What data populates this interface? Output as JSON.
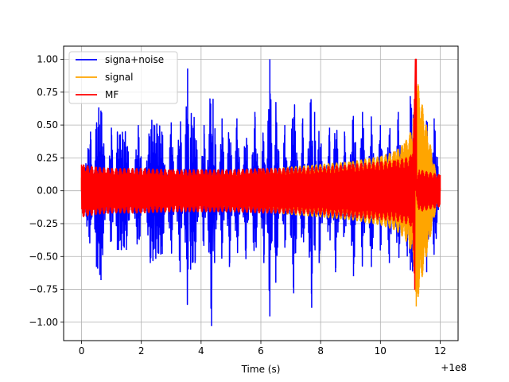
{
  "chart_data": {
    "type": "line",
    "title": "",
    "xlabel": "Time (s)",
    "ylabel": "",
    "x_offset_label": "+1e8",
    "xlim": [
      -0.6,
      12.6
    ],
    "ylim": [
      -1.14,
      1.1
    ],
    "x_ticks": [
      0,
      2,
      4,
      6,
      8,
      10,
      12
    ],
    "x_tick_labels": [
      "0",
      "2",
      "4",
      "6",
      "8",
      "10",
      "12"
    ],
    "y_ticks": [
      -1.0,
      -0.75,
      -0.5,
      -0.25,
      0.0,
      0.25,
      0.5,
      0.75,
      1.0
    ],
    "y_tick_labels": [
      "−1.00",
      "−0.75",
      "−0.50",
      "−0.25",
      "0.00",
      "0.25",
      "0.50",
      "0.75",
      "1.00"
    ],
    "grid": true,
    "legend_position": "top-left",
    "series": [
      {
        "name": "signa+noise",
        "color": "#0000ff",
        "x": [
          0.0,
          0.3,
          0.5,
          0.65,
          1.0,
          1.2,
          1.5,
          1.9,
          2.3,
          2.7,
          3.0,
          3.3,
          3.55,
          3.65,
          3.8,
          4.1,
          4.35,
          4.4,
          4.45,
          4.7,
          4.95,
          5.2,
          5.5,
          5.8,
          6.1,
          6.3,
          6.5,
          6.8,
          7.1,
          7.4,
          7.7,
          7.8,
          7.95,
          8.3,
          8.5,
          8.8,
          9.1,
          9.4,
          9.7,
          10.0,
          10.3,
          10.6,
          10.9,
          11.0,
          11.1,
          11.2,
          11.35,
          11.55,
          11.8,
          12.0
        ],
        "y": [
          0.0,
          0.45,
          -0.58,
          -0.68,
          0.48,
          -0.45,
          -0.45,
          0.5,
          -0.55,
          -0.48,
          0.52,
          -0.62,
          0.93,
          -0.6,
          -0.55,
          0.5,
          -1.03,
          0.7,
          -0.55,
          0.55,
          -0.58,
          0.55,
          -0.52,
          0.6,
          -0.55,
          1.0,
          -0.7,
          0.5,
          -0.78,
          0.55,
          -0.89,
          0.6,
          -0.55,
          0.48,
          -0.62,
          0.45,
          -0.65,
          0.6,
          -0.58,
          0.5,
          -0.55,
          0.6,
          -0.5,
          0.72,
          0.58,
          -0.55,
          0.5,
          -0.62,
          0.55,
          0.0
        ]
      },
      {
        "name": "signal",
        "color": "#ffa500",
        "x": [
          0.0,
          2.0,
          4.0,
          6.0,
          8.0,
          9.0,
          10.0,
          10.5,
          10.8,
          11.0,
          11.1,
          11.15,
          11.18,
          11.2,
          12.0
        ],
        "y": [
          0.1,
          0.12,
          0.14,
          0.16,
          0.2,
          0.22,
          0.26,
          0.3,
          0.36,
          0.44,
          0.55,
          0.65,
          0.98,
          -0.88,
          0.02
        ]
      },
      {
        "name": "MF",
        "color": "#ff0000",
        "x": [
          0.0,
          0.5,
          1.0,
          2.0,
          3.0,
          4.0,
          5.0,
          6.0,
          7.0,
          8.0,
          9.0,
          10.0,
          10.5,
          11.0,
          11.1,
          11.18,
          11.2,
          11.3,
          12.0
        ],
        "y": [
          0.2,
          0.18,
          0.17,
          0.17,
          0.16,
          0.16,
          0.16,
          0.17,
          0.17,
          0.18,
          0.2,
          0.22,
          0.23,
          0.26,
          0.4,
          1.0,
          0.05,
          0.16,
          0.12
        ]
      }
    ]
  }
}
